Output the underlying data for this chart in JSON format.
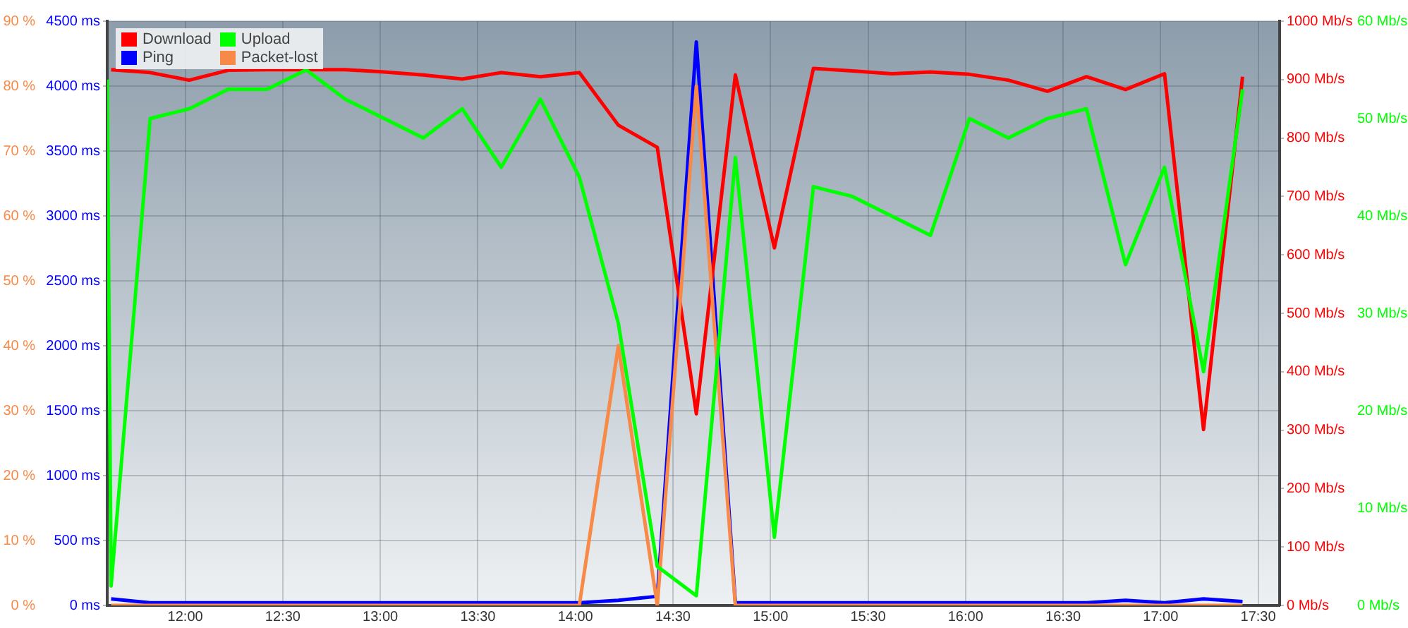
{
  "chart_data": [
    {
      "type": "line",
      "x": [
        11.62,
        11.82,
        12.02,
        12.22,
        12.42,
        12.62,
        12.82,
        13.02,
        13.22,
        13.42,
        13.62,
        13.82,
        14.02,
        14.22,
        14.42,
        14.62,
        14.82,
        15.02,
        15.22,
        15.42,
        15.62,
        15.82,
        16.02,
        16.22,
        16.42,
        16.62,
        16.82,
        17.02,
        17.22,
        17.42
      ],
      "xlim": [
        11.6,
        17.61
      ],
      "xticks": [
        {
          "value": 12,
          "label": "12:00"
        },
        {
          "value": 12.5,
          "label": "12:30"
        },
        {
          "value": 13,
          "label": "13:00"
        },
        {
          "value": 13.5,
          "label": "13:30"
        },
        {
          "value": 14,
          "label": "14:00"
        },
        {
          "value": 14.5,
          "label": "14:30"
        },
        {
          "value": 15,
          "label": "15:00"
        },
        {
          "value": 15.5,
          "label": "15:30"
        },
        {
          "value": 16,
          "label": "16:00"
        },
        {
          "value": 16.5,
          "label": "16:30"
        },
        {
          "value": 17,
          "label": "17:00"
        },
        {
          "value": 17.5,
          "label": "17:30"
        }
      ],
      "ylim": [
        0,
        4500
      ],
      "yticks": [
        {
          "value": 0,
          "label": "0 ms"
        },
        {
          "value": 500,
          "label": "500 ms"
        },
        {
          "value": 1000,
          "label": "1000 ms"
        },
        {
          "value": 1500,
          "label": "1500 ms"
        },
        {
          "value": 2000,
          "label": "2000 ms"
        },
        {
          "value": 2500,
          "label": "2500 ms"
        },
        {
          "value": 3000,
          "label": "3000 ms"
        },
        {
          "value": 3500,
          "label": "3500 ms"
        },
        {
          "value": 4000,
          "label": "4000 ms"
        },
        {
          "value": 4500,
          "label": "4500 ms"
        }
      ],
      "y2lim": [
        0,
        1000
      ],
      "y2ticks": [
        {
          "value": 0,
          "label": "0 Mb/s"
        },
        {
          "value": 100,
          "label": "100 Mb/s"
        },
        {
          "value": 200,
          "label": "200 Mb/s"
        },
        {
          "value": 300,
          "label": "300 Mb/s"
        },
        {
          "value": 400,
          "label": "400 Mb/s"
        },
        {
          "value": 500,
          "label": "500 Mb/s"
        },
        {
          "value": 600,
          "label": "600 Mb/s"
        },
        {
          "value": 700,
          "label": "700 Mb/s"
        },
        {
          "value": 800,
          "label": "800 Mb/s"
        },
        {
          "value": 900,
          "label": "900 Mb/s"
        },
        {
          "value": 1000,
          "label": "1000 Mb/s"
        }
      ],
      "grid": true,
      "legend": "top left",
      "marker": "none",
      "line_style": "solid",
      "series": [
        {
          "name": "Download",
          "color": "#ff0000",
          "axis": "y2",
          "values": [
            917,
            912,
            899,
            916,
            917,
            917,
            917,
            913,
            908,
            901,
            912,
            905,
            912,
            822,
            784,
            328,
            908,
            612,
            919,
            915,
            910,
            913,
            909,
            899,
            880,
            905,
            883,
            910,
            301,
            905
          ]
        },
        {
          "name": "Ping",
          "color": "#0000ff",
          "values": [
            50,
            20,
            20,
            20,
            20,
            20,
            20,
            20,
            20,
            20,
            20,
            20,
            20,
            40,
            70,
            4340,
            20,
            20,
            20,
            20,
            20,
            20,
            20,
            20,
            20,
            20,
            40,
            20,
            50,
            30
          ]
        }
      ]
    },
    {
      "type": "line",
      "x": [
        11.62,
        11.82,
        12.02,
        12.22,
        12.42,
        12.62,
        12.82,
        13.02,
        13.22,
        13.42,
        13.62,
        13.82,
        14.02,
        14.22,
        14.42,
        14.62,
        14.82,
        15.02,
        15.22,
        15.42,
        15.62,
        15.82,
        16.02,
        16.22,
        16.42,
        16.62,
        16.82,
        17.02,
        17.22,
        17.42
      ],
      "xlim": [
        11.6,
        17.61
      ],
      "tick_labels": "y",
      "ylim": [
        0,
        90
      ],
      "yticks": [
        {
          "value": 0,
          "label": "0 %"
        },
        {
          "value": 10,
          "label": "10 %"
        },
        {
          "value": 20,
          "label": "20 %"
        },
        {
          "value": 30,
          "label": "30 %"
        },
        {
          "value": 40,
          "label": "40 %"
        },
        {
          "value": 50,
          "label": "50 %"
        },
        {
          "value": 60,
          "label": "60 %"
        },
        {
          "value": 70,
          "label": "70 %"
        },
        {
          "value": 80,
          "label": "80 %"
        },
        {
          "value": 90,
          "label": "90 %"
        }
      ],
      "y2lim": [
        0,
        60
      ],
      "y2ticks": [
        {
          "value": 0,
          "label": "0 Mb/s"
        },
        {
          "value": 10,
          "label": "10 Mb/s"
        },
        {
          "value": 20,
          "label": "20 Mb/s"
        },
        {
          "value": 30,
          "label": "30 Mb/s"
        },
        {
          "value": 40,
          "label": "40 Mb/s"
        },
        {
          "value": 50,
          "label": "50 Mb/s"
        },
        {
          "value": 60,
          "label": "60 Mb/s"
        }
      ],
      "legend": "top left",
      "marker": "none",
      "line_style": "solid",
      "series": [
        {
          "name": "Upload",
          "color": "#00ff00",
          "axis": "y2",
          "x": [
            11.6,
            11.62,
            11.82,
            12.02,
            12.22,
            12.42,
            12.62,
            12.82,
            13.02,
            13.22,
            13.42,
            13.62,
            13.82,
            14.02,
            14.22,
            14.42,
            14.62,
            14.82,
            15.02,
            15.22,
            15.42,
            15.62,
            15.82,
            16.02,
            16.22,
            16.42,
            16.62,
            16.82,
            17.02,
            17.22,
            17.42
          ],
          "values": [
            54,
            2,
            50,
            51,
            53,
            53,
            55,
            52,
            50,
            48,
            51,
            45,
            52,
            44,
            29,
            4,
            1,
            46,
            7,
            43,
            42,
            40,
            38,
            50,
            48,
            50,
            51,
            35,
            45,
            24,
            53
          ]
        },
        {
          "name": "Packet-lost",
          "color": "#f88a48",
          "values": [
            0,
            0,
            0,
            0,
            0,
            0,
            0,
            0,
            0,
            0,
            0,
            0,
            0,
            40,
            0,
            80,
            0,
            0,
            0,
            0,
            0,
            0,
            0,
            0,
            0,
            0,
            0,
            0,
            0,
            0
          ]
        }
      ]
    }
  ]
}
